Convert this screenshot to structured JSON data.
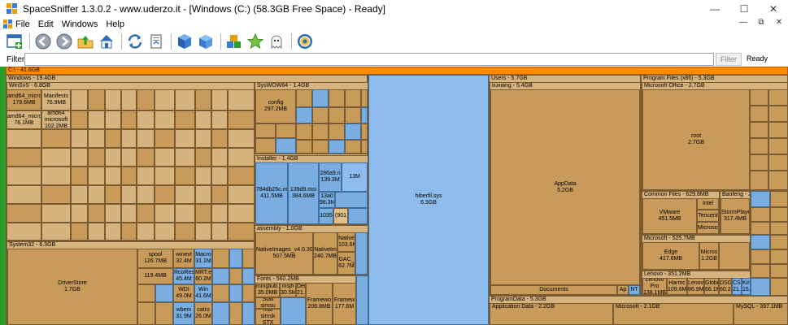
{
  "window": {
    "title": "SpaceSniffer 1.3.0.2 - www.uderzo.it - [Windows (C:) (58.3GB Free Space) - Ready]"
  },
  "menu": {
    "file": "File",
    "edit": "Edit",
    "windows": "Windows",
    "help": "Help"
  },
  "filter": {
    "label": "Filter",
    "value": "",
    "button": "Filter",
    "status": "Ready"
  },
  "treemap": {
    "root": "C:\\ - 41.6GB",
    "windows": "Windows - 19.4GB",
    "winsxs": "WinSxS - 6.8GB",
    "syswow64": "SysWOW64 - 1.4GB",
    "system32": "System32 - 6.3GB",
    "installer": "Installer - 1.4GB",
    "assembly": "assembly - 1.0GB",
    "fonts": "Fonts - 560.2MB",
    "assembly2": "assembly",
    "hiberfil": "hiberfil.sys",
    "hiberfil_size": "6.3GB",
    "users": "Users - 5.7GB",
    "liuxiang": "liuxiang - 5.4GB",
    "appdata": "AppData",
    "appdata_size": "5.2GB",
    "documents": "Documents",
    "ap": "Ap",
    "nt": "NT",
    "programdata": "ProgramData - 5.3GB",
    "application_data": "Application Data - 2.2GB",
    "microsoft_pd": "Microsoft - 2.1GB",
    "mysql_pd": "MySQL - 397.1MB",
    "programfiles": "Program Files (x86) - 5.3GB",
    "msoffice": "Microsoft Office - 2.7GB",
    "root_label": "root",
    "root_size": "2.7GB",
    "common_files": "Common Files - 629.8MB",
    "baofeng": "Baofeng - 21",
    "microsoft_pf": "Microsoft - 525.7MB",
    "lenovo": "Lenovo - 351.2MB",
    "config": "config",
    "config_size": "297.2MB",
    "driverstore": "DriverStore",
    "driverstore_size": "1.7GB",
    "spool": "spool",
    "spool_size": "126.7MB",
    "nativeimages": "NativeImages_v4.0.30",
    "nativeimages_size": "507.5MB",
    "nativeimages2": "NativeIm",
    "nativeimages2_size": "240.7MB",
    "ms_native": "Native",
    "ms_native_size": "103.6M",
    "gac": "GAC_",
    "gac_size": "62.7M",
    "vmware": "VMware",
    "vmware_size": "451.5MB",
    "edge": "Edge",
    "edge_size": "417.6MB",
    "office_c": "Micros",
    "office_c_size": "1.2GB",
    "intel": "Intel",
    "tencent": "Tencent",
    "microsof2": "Microsof",
    "stormplayer": "StormPlaye",
    "stormplayer_size": "317.4MB",
    "inst_784": "784db25c.msi",
    "inst_784_size": "411.5MB",
    "inst_139": "139d9.msi",
    "inst_139_size": "384.6MB",
    "inst_286": "286a9.n",
    "inst_286_size": "139.3M",
    "inst_13": "13a0",
    "inst_13_size": "98.3M",
    "inst_1035": "1035",
    "inst_13m": "13M",
    "inst_901": "(901",
    "winsxs_cells": [
      "amd64_microsoft 179.6MB",
      "Manifests 76.9MB",
      "amd64_micro 76.1MB",
      "amd64 microsoft 102.2MB",
      "amd6 56.3M",
      "amd6 43.4M",
      "amd6 15.1M",
      "amd6 16.0M",
      "x86_m 14.5M",
      "x86_m 15.1M"
    ],
    "system32_cells": [
      "winevt 32.4M",
      "Macro 31.1M",
      "RcoRes 45.4M",
      "MRT.e 60.2M",
      "WDI 49.0M",
      "Win 41.6M",
      "wbem 31.9M",
      "catro 26.0M"
    ],
    "fonts_cells": [
      "mingliub.ttc 35.0MB",
      "msjh 30.5M",
      "Den 21.9M",
      "Stati simsu",
      "Framewo 206.8MB",
      "Framew 177.6M",
      "mal simsk STX"
    ],
    "lenovo_cells": [
      "Lenovo Pro 138.1MB",
      "Harmc 109.6M",
      "Lenov 86.9M",
      "Globe 66.1M",
      "DSG 60.2M",
      "CSP2 21.8M",
      "Kin 15.2M"
    ]
  }
}
